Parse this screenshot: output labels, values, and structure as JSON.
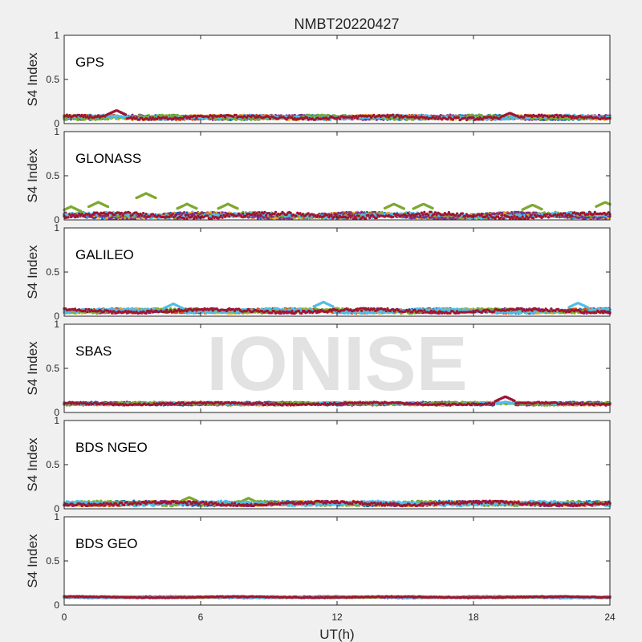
{
  "chart_data": {
    "type": "scatter",
    "title": "NMBT20220427",
    "xlabel": "UT(h)",
    "xlim": [
      0,
      24
    ],
    "xticks": [
      "0",
      "6",
      "12",
      "18",
      "24"
    ],
    "watermark": "IONISE",
    "colors": [
      "#0072BD",
      "#D95319",
      "#EDB120",
      "#7E2F8E",
      "#77AC30",
      "#4DBEEE",
      "#A2142F"
    ],
    "panels": [
      {
        "label": "GPS",
        "ylabel": "S4 Index",
        "ylim": [
          0,
          1
        ],
        "yticks": [
          "0",
          "0.5",
          "1"
        ],
        "baseline": 0.07,
        "spread": 0.03,
        "bumps": [
          [
            2.3,
            0.15
          ],
          [
            19.6,
            0.12
          ]
        ]
      },
      {
        "label": "GLONASS",
        "ylabel": "S4 Index",
        "ylim": [
          0,
          1
        ],
        "yticks": [
          "0",
          "0.5",
          "1"
        ],
        "baseline": 0.05,
        "spread": 0.04,
        "bumps": [
          [
            0.3,
            0.15
          ],
          [
            1.5,
            0.2
          ],
          [
            3.6,
            0.3
          ],
          [
            5.4,
            0.18
          ],
          [
            7.2,
            0.18
          ],
          [
            14.5,
            0.18
          ],
          [
            15.8,
            0.18
          ],
          [
            20.6,
            0.17
          ],
          [
            23.8,
            0.2
          ]
        ]
      },
      {
        "label": "GALILEO",
        "ylabel": "S4 Index",
        "ylim": [
          0,
          1
        ],
        "yticks": [
          "0",
          "0.5",
          "1"
        ],
        "baseline": 0.06,
        "spread": 0.03,
        "bumps": [
          [
            4.8,
            0.14
          ],
          [
            11.4,
            0.16
          ],
          [
            22.6,
            0.15
          ]
        ]
      },
      {
        "label": "SBAS",
        "ylabel": "S4 Index",
        "ylim": [
          0,
          1
        ],
        "yticks": [
          "0",
          "0.5",
          "1"
        ],
        "baseline": 0.1,
        "spread": 0.02,
        "bumps": [
          [
            19.4,
            0.18
          ]
        ]
      },
      {
        "label": "BDS NGEO",
        "ylabel": "S4 Index",
        "ylim": [
          0,
          1
        ],
        "yticks": [
          "0",
          "0.5",
          "1"
        ],
        "baseline": 0.06,
        "spread": 0.03,
        "bumps": [
          [
            5.5,
            0.13
          ],
          [
            8.1,
            0.12
          ]
        ]
      },
      {
        "label": "BDS GEO",
        "ylabel": "S4 Index",
        "ylim": [
          0,
          1
        ],
        "yticks": [
          "0",
          "0.5",
          "1"
        ],
        "baseline": 0.09,
        "spread": 0.01,
        "bumps": []
      }
    ]
  }
}
